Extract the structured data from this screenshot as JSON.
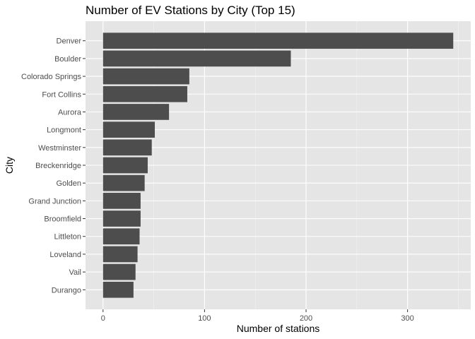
{
  "chart_data": {
    "type": "bar",
    "orientation": "horizontal",
    "title": "Number of EV Stations by City (Top 15)",
    "xlabel": "Number of stations",
    "ylabel": "City",
    "categories": [
      "Denver",
      "Boulder",
      "Colorado Springs",
      "Fort Collins",
      "Aurora",
      "Longmont",
      "Westminster",
      "Breckenridge",
      "Golden",
      "Grand Junction",
      "Broomfield",
      "Littleton",
      "Loveland",
      "Vail",
      "Durango"
    ],
    "values": [
      345,
      185,
      85,
      83,
      65,
      51,
      48,
      44,
      41,
      37,
      37,
      36,
      34,
      32,
      30
    ],
    "xlim": [
      -17.25,
      362.25
    ],
    "xticks": [
      0,
      100,
      200,
      300
    ],
    "xtick_labels": [
      "0",
      "100",
      "200",
      "300"
    ],
    "grid": true,
    "colors": {
      "bar": "#4d4d4d",
      "panel": "#e5e5e5",
      "grid_major": "#ffffff",
      "grid_minor": "#f2f2f2"
    }
  }
}
